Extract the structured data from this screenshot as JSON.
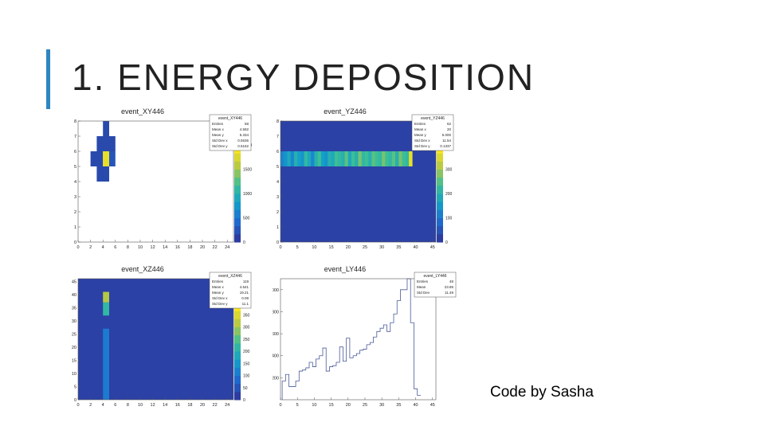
{
  "slide": {
    "title": "1. ENERGY DEPOSITION",
    "credit": "Code by Sasha",
    "accent_color": "#2e86c1"
  },
  "plots": [
    {
      "title": "event_XY446",
      "stats": {
        "name": "event_XY446",
        "rows": [
          [
            "Entries",
            "58"
          ],
          [
            "Mean x",
            "4.592"
          ],
          [
            "Mean y",
            "5.334"
          ],
          [
            "Std Dev x",
            "0.5536"
          ],
          [
            "Std Dev y",
            "0.5162"
          ]
        ]
      },
      "x_ticks": [
        "0",
        "2",
        "4",
        "6",
        "8",
        "10",
        "12",
        "14",
        "16",
        "18",
        "20",
        "22",
        "24"
      ],
      "y_ticks": [
        "0",
        "1",
        "2",
        "3",
        "4",
        "5",
        "6",
        "7",
        "8"
      ],
      "z_ticks": [
        "0",
        "500",
        "1000",
        "1500",
        "2000"
      ]
    },
    {
      "title": "event_YZ446",
      "stats": {
        "name": "event_YZ446",
        "rows": [
          [
            "Entries",
            "62"
          ],
          [
            "Mean x",
            "20"
          ],
          [
            "Mean y",
            "5.000"
          ],
          [
            "Std Dev x",
            "11.54"
          ],
          [
            "Std Dev y",
            "0.1337"
          ]
        ]
      },
      "x_ticks": [
        "0",
        "5",
        "10",
        "15",
        "20",
        "25",
        "30",
        "35",
        "40",
        "45"
      ],
      "y_ticks": [
        "0",
        "1",
        "2",
        "3",
        "4",
        "5",
        "6",
        "7",
        "8"
      ],
      "z_ticks": [
        "0",
        "100",
        "200",
        "300",
        "400"
      ]
    },
    {
      "title": "event_XZ446",
      "stats": {
        "name": "event_XZ446",
        "rows": [
          [
            "Entries",
            "119"
          ],
          [
            "Mean x",
            "4.541"
          ],
          [
            "Mean y",
            "19.21"
          ],
          [
            "Std Dev x",
            "0.09"
          ],
          [
            "Std Dev y",
            "11.1"
          ]
        ]
      },
      "x_ticks": [
        "0",
        "2",
        "4",
        "6",
        "8",
        "10",
        "12",
        "14",
        "16",
        "18",
        "20",
        "22",
        "24"
      ],
      "y_ticks": [
        "0",
        "5",
        "10",
        "15",
        "20",
        "25",
        "30",
        "35",
        "40",
        "45"
      ],
      "z_ticks": [
        "0",
        "50",
        "100",
        "150",
        "200",
        "250",
        "300",
        "350",
        "400"
      ]
    },
    {
      "title": "event_LY446",
      "stats": {
        "name": "event_LY446",
        "rows": [
          [
            "Entries",
            "48"
          ],
          [
            "Mean",
            "23.85"
          ],
          [
            "Std Dev",
            "11.49"
          ]
        ]
      },
      "x_ticks": [
        "0",
        "5",
        "10",
        "15",
        "20",
        "25",
        "30",
        "35",
        "40",
        "45"
      ],
      "y_ticks": [
        "200",
        "400",
        "600",
        "800",
        "1000"
      ]
    }
  ],
  "chart_data": [
    {
      "type": "heatmap",
      "title": "event_XY446",
      "xlim": [
        0,
        25
      ],
      "ylim": [
        0,
        8
      ],
      "cells": [
        {
          "x": [
            4,
            5
          ],
          "y": [
            7,
            8
          ],
          "level": 0.05
        },
        {
          "x": [
            3,
            6
          ],
          "y": [
            6,
            7
          ],
          "level": 0.05
        },
        {
          "x": [
            2,
            4
          ],
          "y": [
            5,
            6
          ],
          "level": 0.05
        },
        {
          "x": [
            4,
            5
          ],
          "y": [
            5,
            6
          ],
          "level": 0.95
        },
        {
          "x": [
            5,
            6
          ],
          "y": [
            5,
            6
          ],
          "level": 0.1
        },
        {
          "x": [
            3,
            5
          ],
          "y": [
            4,
            5
          ],
          "level": 0.05
        },
        {
          "x": [
            4,
            5
          ],
          "y": [
            4,
            5
          ],
          "level": 0.05
        }
      ]
    },
    {
      "type": "heatmap",
      "title": "event_YZ446",
      "xlim": [
        0,
        46
      ],
      "ylim": [
        0,
        8
      ],
      "background_level": 0.02,
      "row": {
        "y": [
          5,
          6
        ],
        "x_start": 0,
        "x_end": 39,
        "levels": [
          0.3,
          0.35,
          0.45,
          0.3,
          0.5,
          0.4,
          0.35,
          0.55,
          0.45,
          0.3,
          0.5,
          0.6,
          0.4,
          0.35,
          0.5,
          0.45,
          0.6,
          0.55,
          0.5,
          0.65,
          0.45,
          0.6,
          0.5,
          0.7,
          0.55,
          0.6,
          0.5,
          0.65,
          0.6,
          0.55,
          0.7,
          0.6,
          0.55,
          0.65,
          0.5,
          0.7,
          0.6,
          0.55,
          0.95
        ]
      }
    },
    {
      "type": "heatmap",
      "title": "event_XZ446",
      "xlim": [
        0,
        25
      ],
      "ylim": [
        0,
        46
      ],
      "background_level": 0.02,
      "column": {
        "x": [
          4,
          5
        ],
        "segments": [
          {
            "y": [
              0,
              27
            ],
            "level": 0.25
          },
          {
            "y": [
              32,
              37
            ],
            "level": 0.55
          },
          {
            "y": [
              37,
              41
            ],
            "level": 0.8
          }
        ]
      }
    },
    {
      "type": "line",
      "title": "event_LY446",
      "xlim": [
        0,
        46
      ],
      "ylim": [
        0,
        1100
      ],
      "x": [
        1,
        2,
        3,
        4,
        5,
        6,
        7,
        8,
        9,
        10,
        11,
        12,
        13,
        14,
        15,
        16,
        17,
        18,
        19,
        20,
        21,
        22,
        23,
        24,
        25,
        26,
        27,
        28,
        29,
        30,
        31,
        32,
        33,
        34,
        35,
        36,
        37,
        38,
        39,
        40,
        41
      ],
      "y": [
        170,
        230,
        120,
        120,
        170,
        260,
        270,
        290,
        340,
        300,
        370,
        400,
        470,
        260,
        300,
        310,
        340,
        480,
        350,
        560,
        380,
        400,
        420,
        450,
        460,
        500,
        520,
        570,
        620,
        650,
        680,
        620,
        700,
        780,
        900,
        1000,
        1000,
        1100,
        700,
        100,
        40
      ]
    }
  ]
}
